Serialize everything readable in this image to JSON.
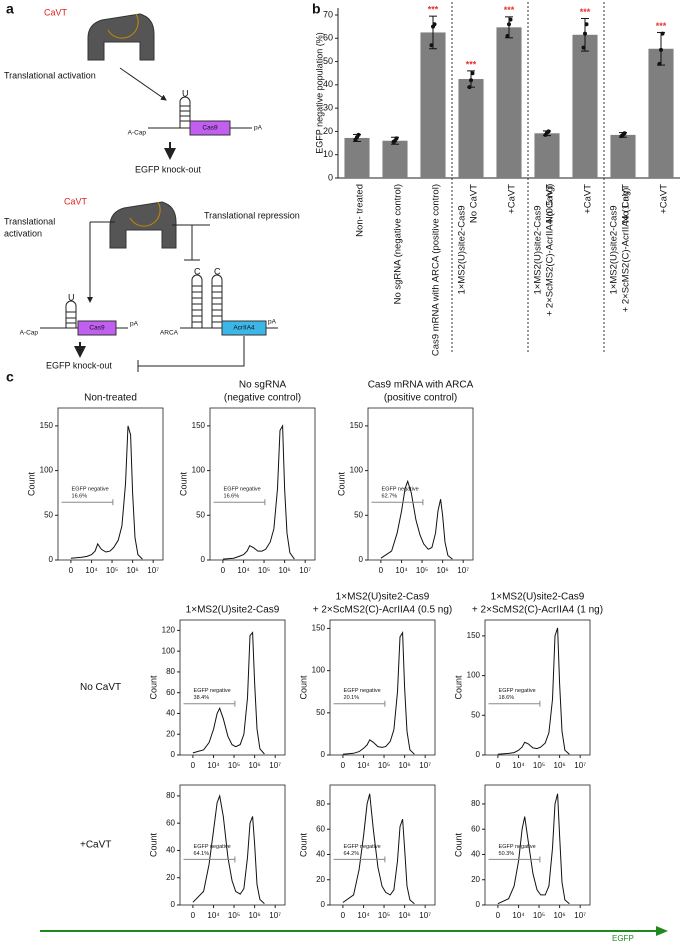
{
  "panel_labels": [
    "a",
    "b",
    "c"
  ],
  "diagram": {
    "top": {
      "protein": "CaVT",
      "arrow_label": "Translational activation",
      "loop": "U",
      "cap": "A-Cap",
      "gene": "Cas9",
      "tail": "pA",
      "outcome": "EGFP knock-out"
    },
    "bottom": {
      "protein": "CaVT",
      "activation": [
        "Translational",
        "activation"
      ],
      "repression": "Translational repression",
      "loop_left": "U",
      "loop_right": [
        "C",
        "C"
      ],
      "cap": "A-Cap",
      "gene": "Cas9",
      "tail": "pA",
      "cap2": "ARCA",
      "gene2": "AcrIIA4",
      "tail2": "pA",
      "outcome": "EGFP knock-out"
    }
  },
  "column_titles": [
    [
      "1×MS2(U)site2-Cas9"
    ],
    [
      "1×MS2(U)site2-Cas9",
      "+ 2×ScMS2(C)-AcrIIA4 (0.5 ng)"
    ],
    [
      "1×MS2(U)site2-Cas9",
      "+ 2×ScMS2(C)-AcrIIA4 (1 ng)"
    ]
  ],
  "row_labels": [
    "No CaVT",
    "+CaVT"
  ],
  "x_axis_label": "EGFP",
  "chart_data": [
    {
      "type": "bar",
      "ylabel": "EGFP negative population (%)",
      "color": "#7f7f7f",
      "sig_color": "#e8322f",
      "categories": [
        "Non- treated",
        "No sgRNA (negative control)",
        "Cas9 mRNA with ARCA (positive control)",
        "No CaVT",
        "+CaVT",
        "No CaVT",
        "+CaVT",
        "No CaVT",
        "+CaVT"
      ],
      "group_labels": [
        null,
        null,
        null,
        [
          "1×MS2(U)site2-Cas9"
        ],
        null,
        [
          "1×MS2(U)site2-Cas9",
          "+ 2×ScMS2(C)-AcrIIA4 (0.5 ng)"
        ],
        null,
        [
          "1×MS2(U)site2-Cas9",
          "+ 2×ScMS2(C)-AcrIIA4 (1 ng)"
        ],
        null
      ],
      "values": [
        17.2,
        16.0,
        62.5,
        42.5,
        64.7,
        19.2,
        61.5,
        18.5,
        55.5
      ],
      "errors": [
        1.5,
        1.5,
        7,
        3.5,
        4.5,
        1,
        7,
        1,
        7
      ],
      "points": [
        [
          16.5,
          17.5,
          18.5
        ],
        [
          15.5,
          16,
          17
        ],
        [
          57,
          65,
          66
        ],
        [
          39,
          42,
          45
        ],
        [
          61,
          66,
          68
        ],
        [
          18.5,
          19.5,
          20
        ],
        [
          56,
          62,
          66
        ],
        [
          18,
          18.5,
          19.2
        ],
        [
          49,
          55,
          62
        ]
      ],
      "significance": [
        null,
        null,
        "***",
        "***",
        "***",
        null,
        "***",
        null,
        "***"
      ],
      "ylim": [
        0,
        73
      ],
      "yticks": [
        0,
        10,
        20,
        30,
        40,
        50,
        60,
        70
      ]
    },
    {
      "type": "line",
      "title": [
        "Non-treated"
      ],
      "ylabel": "Count",
      "gate_label": "EGFP negative",
      "gate_percent": "16.6%",
      "gate_range": [
        -2500,
        110000
      ],
      "xscale": "biexponential",
      "xlim": [
        -4000,
        30000000
      ],
      "xticks": [
        0,
        {
          "value": 10000,
          "label": "10⁴"
        },
        {
          "value": 100000,
          "label": "10⁵"
        },
        {
          "value": 1000000,
          "label": "10⁶"
        },
        {
          "value": 10000000,
          "label": "10⁷"
        }
      ],
      "x": [
        0,
        3000,
        6000,
        10000,
        15000,
        20000,
        30000,
        50000,
        80000,
        120000,
        200000,
        300000,
        450000,
        600000,
        800000,
        1000000,
        1300000,
        1800000,
        3000000
      ],
      "values": [
        2,
        3,
        4,
        6,
        10,
        18,
        12,
        9,
        10,
        14,
        22,
        38,
        85,
        150,
        140,
        75,
        25,
        6,
        1
      ],
      "ylim": [
        0,
        170
      ],
      "yticks": [
        0,
        50,
        100,
        150
      ]
    },
    {
      "type": "line",
      "title": [
        "No sgRNA",
        "(negative control)"
      ],
      "ylabel": "Count",
      "gate_label": "EGFP negative",
      "gate_percent": "16.6%",
      "gate_range": [
        -2500,
        110000
      ],
      "xscale": "biexponential",
      "xlim": [
        -4000,
        30000000
      ],
      "xticks": [
        0,
        {
          "value": 10000,
          "label": "10⁴"
        },
        {
          "value": 100000,
          "label": "10⁵"
        },
        {
          "value": 1000000,
          "label": "10⁶"
        },
        {
          "value": 10000000,
          "label": "10⁷"
        }
      ],
      "x": [
        0,
        3000,
        6000,
        10000,
        15000,
        20000,
        30000,
        50000,
        80000,
        120000,
        200000,
        300000,
        450000,
        600000,
        800000,
        1000000,
        1300000,
        1800000,
        3000000
      ],
      "values": [
        1,
        2,
        4,
        6,
        10,
        16,
        14,
        10,
        10,
        12,
        20,
        35,
        80,
        145,
        150,
        80,
        30,
        8,
        1
      ],
      "ylim": [
        0,
        170
      ],
      "yticks": [
        0,
        50,
        100,
        150
      ]
    },
    {
      "type": "line",
      "title": [
        "Cas9 mRNA with ARCA",
        "(positive control)"
      ],
      "ylabel": "Count",
      "gate_label": "EGFP negative",
      "gate_percent": "62.7%",
      "gate_range": [
        -2500,
        110000
      ],
      "xscale": "biexponential",
      "xlim": [
        -4000,
        30000000
      ],
      "xticks": [
        0,
        {
          "value": 10000,
          "label": "10⁴"
        },
        {
          "value": 100000,
          "label": "10⁵"
        },
        {
          "value": 1000000,
          "label": "10⁶"
        },
        {
          "value": 10000000,
          "label": "10⁷"
        }
      ],
      "x": [
        0,
        3000,
        6000,
        10000,
        15000,
        20000,
        30000,
        50000,
        80000,
        120000,
        200000,
        300000,
        450000,
        600000,
        800000,
        1000000,
        1300000,
        1800000,
        3000000
      ],
      "values": [
        2,
        10,
        30,
        55,
        80,
        88,
        75,
        45,
        28,
        18,
        12,
        14,
        30,
        55,
        68,
        50,
        20,
        5,
        1
      ],
      "ylim": [
        0,
        170
      ],
      "yticks": [
        0,
        50,
        100,
        150
      ]
    },
    {
      "type": "line",
      "ylabel": "Count",
      "gate_label": "EGFP negative",
      "gate_percent": "38.4%",
      "gate_range": [
        -2500,
        110000
      ],
      "xscale": "biexponential",
      "xlim": [
        -4000,
        30000000
      ],
      "xticks": [
        0,
        {
          "value": 10000,
          "label": "10⁴"
        },
        {
          "value": 100000,
          "label": "10⁵"
        },
        {
          "value": 1000000,
          "label": "10⁶"
        },
        {
          "value": 10000000,
          "label": "10⁷"
        }
      ],
      "x": [
        0,
        3000,
        6000,
        10000,
        15000,
        20000,
        30000,
        50000,
        80000,
        120000,
        200000,
        300000,
        450000,
        600000,
        800000,
        1000000,
        1300000,
        1800000,
        3000000
      ],
      "values": [
        2,
        5,
        12,
        25,
        40,
        45,
        35,
        18,
        10,
        8,
        10,
        20,
        55,
        115,
        118,
        70,
        25,
        6,
        1
      ],
      "ylim": [
        0,
        130
      ],
      "yticks": [
        0,
        20,
        40,
        60,
        80,
        100,
        120
      ]
    },
    {
      "type": "line",
      "ylabel": "Count",
      "gate_label": "EGFP negative",
      "gate_percent": "20.1%",
      "gate_range": [
        -2500,
        110000
      ],
      "xscale": "biexponential",
      "xlim": [
        -4000,
        30000000
      ],
      "xticks": [
        0,
        {
          "value": 10000,
          "label": "10⁴"
        },
        {
          "value": 100000,
          "label": "10⁵"
        },
        {
          "value": 1000000,
          "label": "10⁶"
        },
        {
          "value": 10000000,
          "label": "10⁷"
        }
      ],
      "x": [
        0,
        3000,
        6000,
        10000,
        15000,
        20000,
        30000,
        50000,
        80000,
        120000,
        200000,
        300000,
        450000,
        600000,
        800000,
        1000000,
        1300000,
        1800000,
        3000000
      ],
      "values": [
        1,
        2,
        4,
        8,
        12,
        18,
        15,
        10,
        9,
        10,
        16,
        30,
        75,
        140,
        145,
        80,
        28,
        6,
        1
      ],
      "ylim": [
        0,
        160
      ],
      "yticks": [
        0,
        50,
        100,
        150
      ]
    },
    {
      "type": "line",
      "ylabel": "Count",
      "gate_label": "EGFP negative",
      "gate_percent": "18.6%",
      "gate_range": [
        -2500,
        110000
      ],
      "xscale": "biexponential",
      "xlim": [
        -4000,
        30000000
      ],
      "xticks": [
        0,
        {
          "value": 10000,
          "label": "10⁴"
        },
        {
          "value": 100000,
          "label": "10⁵"
        },
        {
          "value": 1000000,
          "label": "10⁶"
        },
        {
          "value": 10000000,
          "label": "10⁷"
        }
      ],
      "x": [
        0,
        3000,
        6000,
        10000,
        15000,
        20000,
        30000,
        50000,
        80000,
        120000,
        200000,
        300000,
        450000,
        600000,
        800000,
        1000000,
        1300000,
        1800000,
        3000000
      ],
      "values": [
        1,
        2,
        3,
        6,
        10,
        16,
        14,
        9,
        8,
        10,
        15,
        28,
        70,
        150,
        160,
        90,
        30,
        6,
        1
      ],
      "ylim": [
        0,
        170
      ],
      "yticks": [
        0,
        50,
        100,
        150
      ]
    },
    {
      "type": "line",
      "ylabel": "Count",
      "gate_label": "EGFP negative",
      "gate_percent": "64.1%",
      "gate_range": [
        -2500,
        110000
      ],
      "xscale": "biexponential",
      "xlim": [
        -4000,
        30000000
      ],
      "xticks": [
        0,
        {
          "value": 10000,
          "label": "10⁴"
        },
        {
          "value": 100000,
          "label": "10⁵"
        },
        {
          "value": 1000000,
          "label": "10⁶"
        },
        {
          "value": 10000000,
          "label": "10⁷"
        }
      ],
      "x": [
        0,
        3000,
        6000,
        10000,
        15000,
        20000,
        30000,
        50000,
        80000,
        120000,
        200000,
        300000,
        450000,
        600000,
        800000,
        1000000,
        1300000,
        1800000,
        3000000
      ],
      "values": [
        2,
        10,
        30,
        55,
        75,
        80,
        65,
        35,
        18,
        10,
        8,
        12,
        35,
        60,
        65,
        45,
        15,
        4,
        1
      ],
      "ylim": [
        0,
        88
      ],
      "yticks": [
        0,
        20,
        40,
        60,
        80
      ]
    },
    {
      "type": "line",
      "ylabel": "Count",
      "gate_label": "EGFP negative",
      "gate_percent": "64.2%",
      "gate_range": [
        -2500,
        110000
      ],
      "xscale": "biexponential",
      "xlim": [
        -4000,
        30000000
      ],
      "xticks": [
        0,
        {
          "value": 10000,
          "label": "10⁴"
        },
        {
          "value": 100000,
          "label": "10⁵"
        },
        {
          "value": 1000000,
          "label": "10⁶"
        },
        {
          "value": 10000000,
          "label": "10⁷"
        }
      ],
      "x": [
        0,
        3000,
        6000,
        10000,
        15000,
        20000,
        30000,
        50000,
        80000,
        120000,
        200000,
        300000,
        450000,
        600000,
        800000,
        1000000,
        1300000,
        1800000,
        3000000
      ],
      "values": [
        2,
        8,
        28,
        55,
        80,
        88,
        60,
        30,
        15,
        10,
        8,
        12,
        35,
        62,
        68,
        45,
        15,
        4,
        1
      ],
      "ylim": [
        0,
        95
      ],
      "yticks": [
        0,
        20,
        40,
        60,
        80
      ]
    },
    {
      "type": "line",
      "ylabel": "Count",
      "gate_label": "EGFP negative",
      "gate_percent": "50.3%",
      "gate_range": [
        -2500,
        110000
      ],
      "xscale": "biexponential",
      "xlim": [
        -4000,
        30000000
      ],
      "xticks": [
        0,
        {
          "value": 10000,
          "label": "10⁴"
        },
        {
          "value": 100000,
          "label": "10⁵"
        },
        {
          "value": 1000000,
          "label": "10⁶"
        },
        {
          "value": 10000000,
          "label": "10⁷"
        }
      ],
      "x": [
        0,
        3000,
        6000,
        10000,
        15000,
        20000,
        30000,
        50000,
        80000,
        120000,
        200000,
        300000,
        450000,
        600000,
        800000,
        1000000,
        1300000,
        1800000,
        3000000
      ],
      "values": [
        1,
        5,
        15,
        35,
        60,
        70,
        50,
        25,
        12,
        8,
        8,
        15,
        45,
        80,
        88,
        55,
        18,
        4,
        1
      ],
      "ylim": [
        0,
        95
      ],
      "yticks": [
        0,
        20,
        40,
        60,
        80
      ]
    }
  ]
}
